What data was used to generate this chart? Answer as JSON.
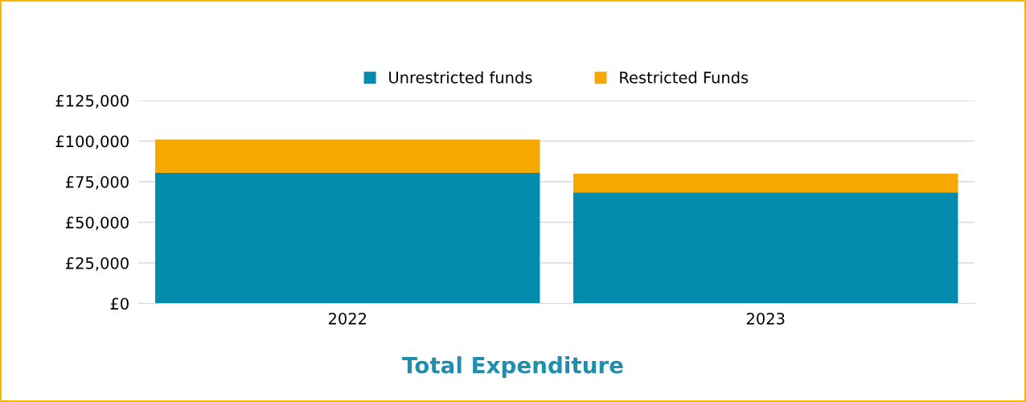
{
  "chart_data": {
    "type": "bar",
    "title": "Total Expenditure",
    "stacked": true,
    "categories": [
      "2022",
      "2023"
    ],
    "series": [
      {
        "name": "Unrestricted funds",
        "color": "#028bac",
        "values": [
          80500,
          68500
        ]
      },
      {
        "name": "Restricted Funds",
        "color": "#f5a800",
        "values": [
          20500,
          11500
        ]
      }
    ],
    "ylim": [
      0,
      125000
    ],
    "yticks": [
      {
        "value": 0,
        "label": "£0"
      },
      {
        "value": 25000,
        "label": "£25,000"
      },
      {
        "value": 50000,
        "label": "£50,000"
      },
      {
        "value": 75000,
        "label": "£75,000"
      },
      {
        "value": 100000,
        "label": "£100,000"
      },
      {
        "value": 125000,
        "label": "£125,000"
      }
    ],
    "grid": "y",
    "legend": "top"
  }
}
